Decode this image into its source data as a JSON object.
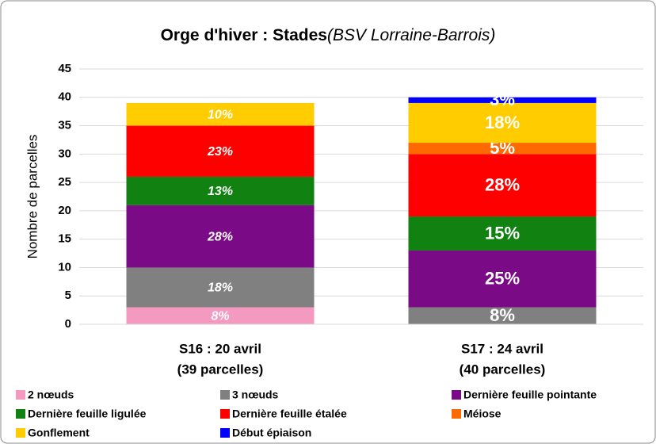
{
  "chart_data": {
    "type": "stacked_bar",
    "title": "Orge d'hiver : Stades",
    "subtitle": "(BSV Lorraine-Barrois)",
    "y_label": "Nombre de parcelles",
    "categories": [
      [
        "S16 : 20 avril",
        "(39 parcelles)"
      ],
      [
        "S17 : 24 avril",
        "(40 parcelles)"
      ]
    ],
    "series": [
      {
        "name": "2 nœuds",
        "color": "#f49ac1",
        "values": [
          3,
          0
        ],
        "data_labels": [
          "8%",
          null
        ]
      },
      {
        "name": "3 nœuds",
        "color": "#808080",
        "values": [
          7,
          3
        ],
        "data_labels": [
          "18%",
          "8%"
        ]
      },
      {
        "name": "Dernière feuille pointante",
        "color": "#7b0a87",
        "values": [
          11,
          10
        ],
        "data_labels": [
          "28%",
          "25%"
        ]
      },
      {
        "name": "Dernière feuille ligulée",
        "color": "#118211",
        "values": [
          5,
          6
        ],
        "data_labels": [
          "13%",
          "15%"
        ]
      },
      {
        "name": "Dernière feuille étalée",
        "color": "#ff0000",
        "values": [
          9,
          11
        ],
        "data_labels": [
          "23%",
          "28%"
        ]
      },
      {
        "name": "Méiose",
        "color": "#ff6a00",
        "values": [
          0,
          2
        ],
        "data_labels": [
          null,
          "5%"
        ]
      },
      {
        "name": "Gonflement",
        "color": "#ffcc00",
        "values": [
          4,
          7
        ],
        "data_labels": [
          "10%",
          "18%"
        ]
      },
      {
        "name": "Début épiaison",
        "color": "#0000ff",
        "values": [
          0,
          1
        ],
        "data_labels": [
          null,
          "3%"
        ]
      }
    ],
    "ylim": [
      0,
      45
    ],
    "yticks": [
      0,
      5,
      10,
      15,
      20,
      25,
      30,
      35,
      40,
      45
    ],
    "grid": true
  }
}
